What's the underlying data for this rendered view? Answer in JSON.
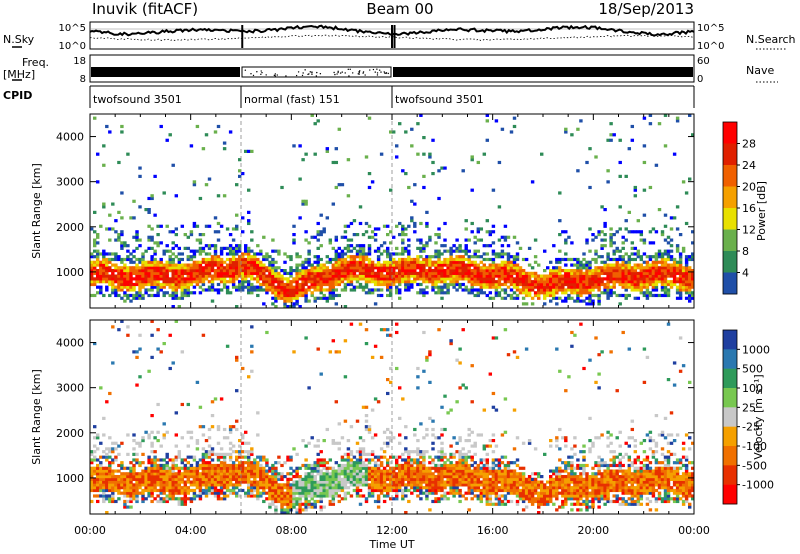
{
  "header": {
    "station": "Inuvik (fitACF)",
    "beam": "Beam 00",
    "date": "18/Sep/2013"
  },
  "params_panel": {
    "nsky_label": "N.Sky",
    "nsearch_label": "N.Search",
    "freq_label": "Freq.",
    "freq_unit": "[MHz]",
    "nave_label": "Nave",
    "cpid_label": "CPID",
    "left_ticks_top": [
      "10^5",
      "10^0"
    ],
    "right_ticks_top": [
      "10^5",
      "10^0"
    ],
    "left_ticks_freq": [
      "18",
      "8"
    ],
    "right_ticks_nave": [
      "60",
      "0"
    ]
  },
  "cpid_segments": [
    {
      "start": 0,
      "end": 6,
      "label": "twofsound 3501"
    },
    {
      "start": 6,
      "end": 12,
      "label": "normal (fast) 151"
    },
    {
      "start": 12,
      "end": 24,
      "label": "twofsound 3501"
    }
  ],
  "colors": {
    "power": [
      "#0000ff",
      "#1f4fa8",
      "#2e8b57",
      "#6ab04c",
      "#e8e000",
      "#f5a000",
      "#f06000",
      "#e02000",
      "#ff0000"
    ],
    "velocity": [
      "#1f3fa0",
      "#2a78b0",
      "#2e9a5a",
      "#78c850",
      "#c8c8c8",
      "#f5a000",
      "#f07000",
      "#e83000",
      "#ff0000"
    ]
  },
  "chart_data": [
    {
      "type": "heatmap",
      "title": "Power",
      "ylabel": "Slant Range [km]",
      "xlabel": "Time UT",
      "xlim": [
        0,
        24
      ],
      "ylim": [
        200,
        4500
      ],
      "x_ticks": [
        "00:00",
        "04:00",
        "08:00",
        "12:00",
        "16:00",
        "20:00",
        "00:00"
      ],
      "y_ticks": [
        1000,
        2000,
        3000,
        4000
      ],
      "colorbar_label": "Power [dB]",
      "colorbar_ticks": [
        "4",
        "8",
        "12",
        "16",
        "20",
        "24",
        "28"
      ],
      "mode_change_hours": [
        6,
        12
      ],
      "main_echo_band": [
        {
          "t": 0,
          "r": 950
        },
        {
          "t": 2,
          "r": 900
        },
        {
          "t": 4,
          "r": 950
        },
        {
          "t": 6,
          "r": 1150
        },
        {
          "t": 8,
          "r": 600
        },
        {
          "t": 10,
          "r": 1050
        },
        {
          "t": 12,
          "r": 1000
        },
        {
          "t": 14,
          "r": 1050
        },
        {
          "t": 16,
          "r": 950
        },
        {
          "t": 18,
          "r": 700
        },
        {
          "t": 20,
          "r": 850
        },
        {
          "t": 22,
          "r": 950
        },
        {
          "t": 24,
          "r": 900
        }
      ]
    },
    {
      "type": "heatmap",
      "title": "Velocity",
      "ylabel": "Slant Range [km]",
      "xlabel": "Time UT",
      "xlim": [
        0,
        24
      ],
      "ylim": [
        200,
        4500
      ],
      "x_ticks": [
        "00:00",
        "04:00",
        "08:00",
        "12:00",
        "16:00",
        "20:00",
        "00:00"
      ],
      "y_ticks": [
        1000,
        2000,
        3000,
        4000
      ],
      "colorbar_label": "Velocity [m s⁻¹]",
      "colorbar_ticks": [
        "1000",
        "500",
        "100",
        "25",
        "-25",
        "-100",
        "-500",
        "-1000"
      ],
      "mode_change_hours": [
        6,
        12
      ]
    }
  ],
  "x_axis": {
    "ticks": [
      "00:00",
      "04:00",
      "08:00",
      "12:00",
      "16:00",
      "20:00",
      "00:00"
    ],
    "label": "Time UT"
  }
}
